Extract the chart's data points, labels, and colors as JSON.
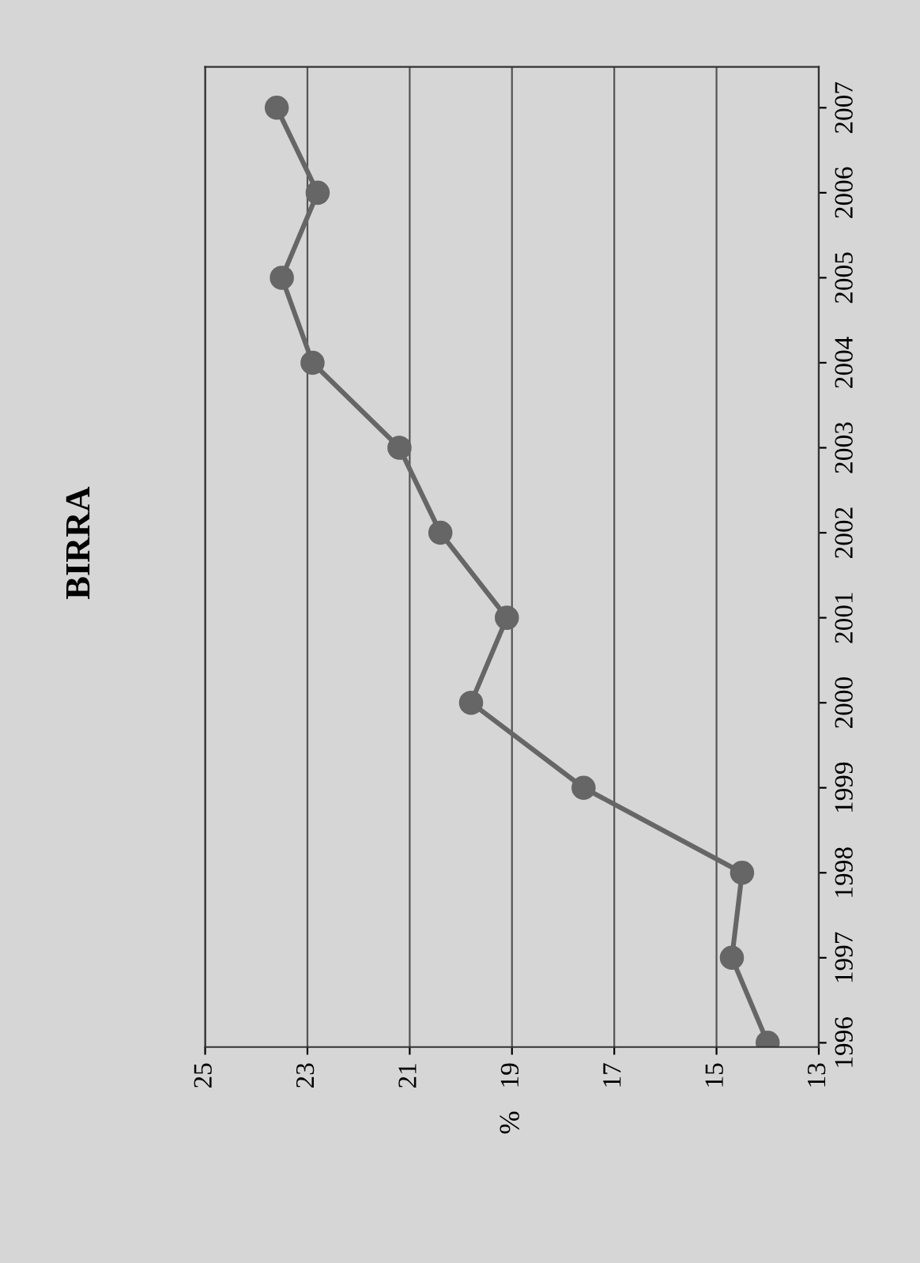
{
  "chart_data": {
    "type": "line",
    "orientation": "horizontal",
    "title": "BIRRA",
    "ylabel": "%",
    "categories": [
      "2007",
      "2006",
      "2005",
      "2004",
      "2003",
      "2002",
      "2001",
      "2000",
      "1999",
      "1998",
      "1997",
      "1996"
    ],
    "series": [
      {
        "color": "#666666",
        "values": [
          23.6,
          22.8,
          23.5,
          22.9,
          21.2,
          20.4,
          19.1,
          19.8,
          17.6,
          14.5,
          14.7,
          14.0
        ]
      }
    ],
    "xlim": [
      25,
      13
    ],
    "xticks": [
      25,
      23,
      21,
      19,
      17,
      15,
      13
    ],
    "grid": "x",
    "marker": "circle",
    "line_style": "solid",
    "legend": false
  }
}
